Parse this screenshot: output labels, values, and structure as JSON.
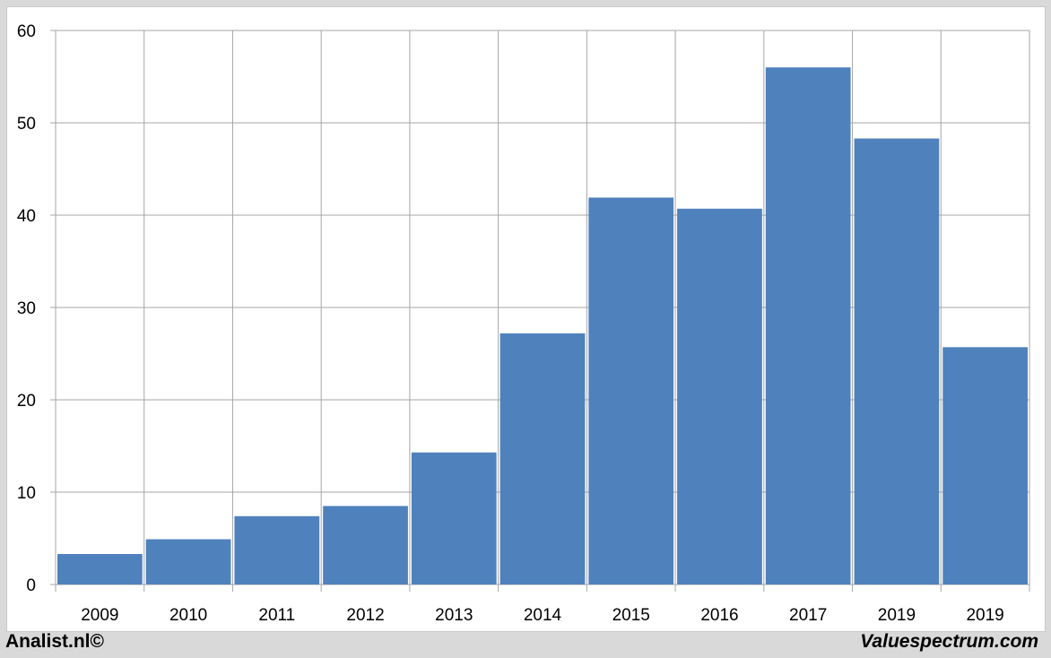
{
  "chart_data": {
    "type": "bar",
    "categories": [
      "2009",
      "2010",
      "2011",
      "2012",
      "2013",
      "2014",
      "2015",
      "2016",
      "2017",
      "2019",
      "2019"
    ],
    "values": [
      3.3,
      4.9,
      7.4,
      8.5,
      14.3,
      27.2,
      41.9,
      40.7,
      56.0,
      48.3,
      25.7
    ],
    "ylim": [
      0,
      60
    ],
    "yticks": [
      0,
      10,
      20,
      30,
      40,
      50,
      60
    ],
    "grid": true,
    "bar_color": "#4f81bd",
    "title": "",
    "xlabel": "",
    "ylabel": ""
  },
  "footer": {
    "left": "Analist.nl©",
    "right": "Valuespectrum.com"
  }
}
